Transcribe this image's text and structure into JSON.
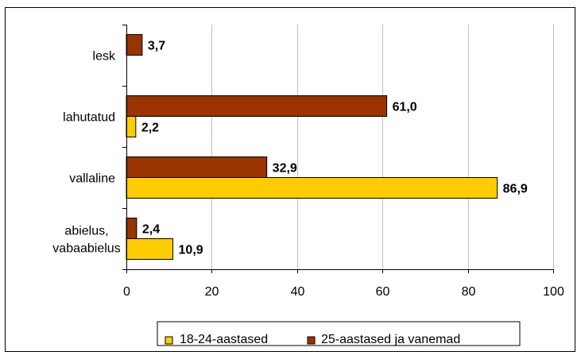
{
  "chart_data": {
    "type": "bar",
    "orientation": "horizontal",
    "title": "",
    "xlabel": "",
    "ylabel": "",
    "categories": [
      "lesk",
      "lahutatud",
      "vallaline",
      [
        "abielus,",
        "vabaabielus"
      ]
    ],
    "category_labels": [
      "lesk",
      "lahutatud",
      "vallaline",
      "abielus, vabaabielus"
    ],
    "series": [
      {
        "name": "18-24-aastased",
        "color": "#FFCC00",
        "values": [
          null,
          2.2,
          86.9,
          10.9
        ],
        "labels": [
          "",
          "2,2",
          "86,9",
          "10,9"
        ]
      },
      {
        "name": "25-aastased ja vanemad",
        "color": "#993300",
        "values": [
          3.7,
          61.0,
          32.9,
          2.4
        ],
        "labels": [
          "3,7",
          "61,0",
          "32,9",
          "2,4"
        ]
      }
    ],
    "xlim": [
      0,
      100
    ],
    "xticks": [
      0,
      20,
      40,
      60,
      80,
      100
    ],
    "xtick_labels": [
      "0",
      "20",
      "40",
      "60",
      "80",
      "100"
    ],
    "grid": true,
    "legend_position": "bottom"
  }
}
